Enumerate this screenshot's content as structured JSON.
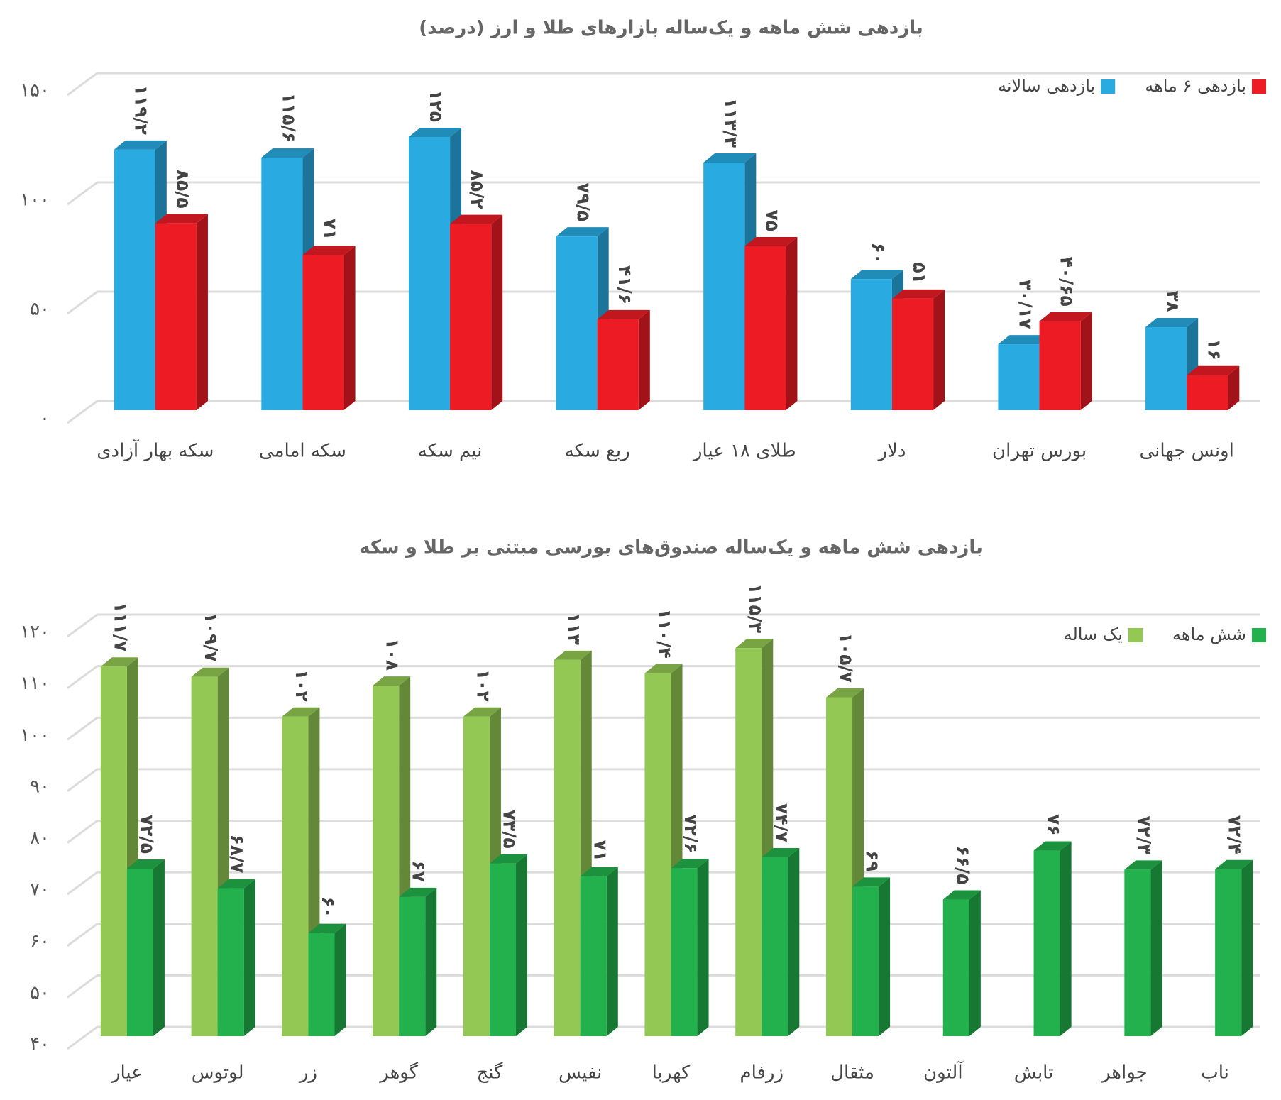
{
  "chart_data": [
    {
      "type": "bar3d",
      "title": "بازدهی شش ماهه و یک‌ساله بازارهای طلا و ارز (درصد)",
      "categories": [
        "سکه بهار آزادی",
        "سکه امامی",
        "نیم سکه",
        "ربع سکه",
        "طلای ۱۸ عیار",
        "دلار",
        "بورس تهران",
        "اونس جهانی"
      ],
      "series": [
        {
          "name": "بازدهی سالانه",
          "color": "#29abe2",
          "values": [
            119.2,
            115.6,
            125,
            79.5,
            113.3,
            60,
            30.17,
            38
          ],
          "value_labels": [
            "۱۱۹/۲",
            "۱۱۵/۶",
            "۱۲۵",
            "۷۹/۵",
            "۱۱۳/۳",
            "۶۰",
            "۳۰/۱۷",
            "۳۸"
          ]
        },
        {
          "name": "بازدهی ۶ ماهه",
          "color": "#ed1c24",
          "values": [
            85.5,
            71,
            85.2,
            41.6,
            75,
            51,
            40.65,
            16
          ],
          "value_labels": [
            "۸۵/۵",
            "۷۱",
            "۸۵/۲",
            "۴۱/۶",
            "۷۵",
            "۵۱",
            "۴۰/۶۵",
            "۱۶"
          ]
        }
      ],
      "ylim": [
        0,
        150
      ],
      "yticks": [
        {
          "value": 0,
          "label": "۰"
        },
        {
          "value": 50,
          "label": "۵۰"
        },
        {
          "value": 100,
          "label": "۱۰۰"
        },
        {
          "value": 150,
          "label": "۱۵۰"
        }
      ],
      "grid": true,
      "legend": "top-right"
    },
    {
      "type": "bar3d",
      "title": "بازدهی شش ماهه و یک‌ساله صندوق‌های بورسی مبتنی بر طلا و سکه",
      "categories": [
        "عیار",
        "لوتوس",
        "زر",
        "گوهر",
        "گنج",
        "نفیس",
        "کهربا",
        "زرفام",
        "مثقال",
        "آلتون",
        "تابش",
        "جواهر",
        "ناب"
      ],
      "series": [
        {
          "name": "یک ساله",
          "color": "#92c853",
          "values": [
            111.7,
            109.7,
            102,
            108,
            102,
            113,
            110.4,
            115.3,
            105.7,
            null,
            null,
            null,
            null
          ],
          "value_labels": [
            "۱۱۱/۷",
            "۱۰۹/۷",
            "۱۰۲",
            "۱۰۸",
            "۱۰۲",
            "۱۱۳",
            "۱۱۰/۴",
            "۱۱۵/۳",
            "۱۰۵/۷",
            null,
            null,
            null,
            null
          ]
        },
        {
          "name": "شش ماهه",
          "color": "#22b14c",
          "values": [
            72.5,
            68.7,
            60,
            67,
            73.5,
            71,
            72.6,
            74.7,
            69,
            66.5,
            76,
            72.3,
            72.4
          ],
          "value_labels": [
            "۷۲/۵",
            "۶۸/۷",
            "۶۰",
            "۶۷",
            "۷۳/۵",
            "۷۱",
            "۷۲/۶",
            "۷۴/۷",
            "۶۹",
            "۶۶/۵",
            "۷۶",
            "۷۲/۳",
            "۷۲/۴"
          ]
        }
      ],
      "ylim": [
        40,
        120
      ],
      "yticks": [
        {
          "value": 40,
          "label": "۴۰"
        },
        {
          "value": 50,
          "label": "۵۰"
        },
        {
          "value": 60,
          "label": "۶۰"
        },
        {
          "value": 70,
          "label": "۷۰"
        },
        {
          "value": 80,
          "label": "۸۰"
        },
        {
          "value": 90,
          "label": "۹۰"
        },
        {
          "value": 100,
          "label": "۱۰۰"
        },
        {
          "value": 110,
          "label": "۱۱۰"
        },
        {
          "value": 120,
          "label": "۱۲۰"
        }
      ],
      "grid": true,
      "legend": "top-right"
    }
  ]
}
